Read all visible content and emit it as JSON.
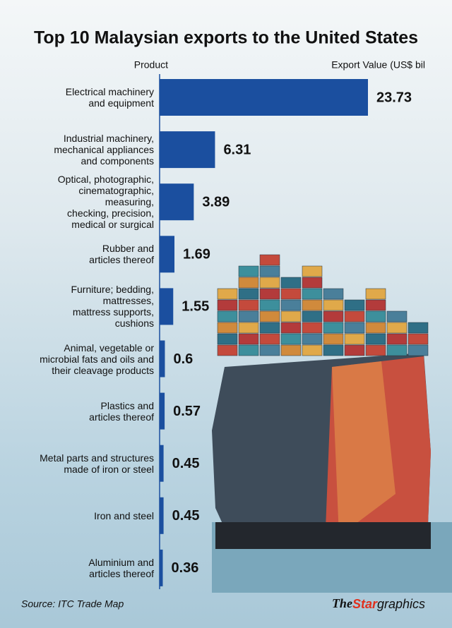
{
  "chart_data": {
    "type": "bar",
    "orientation": "horizontal",
    "title": "Top 10 Malaysian exports to the United States",
    "category_header": "Product",
    "value_header": "Export Value (US$ bil",
    "categories": [
      "Electrical machinery\nand equipment",
      "Industrial machinery,\nmechanical appliances\nand components",
      "Optical, photographic,\ncinematographic,\nmeasuring,\nchecking, precision,\nmedical or surgical",
      "Rubber and\narticles thereof",
      "Furniture; bedding,\nmattresses,\nmattress supports,\ncushions",
      "Animal, vegetable or\nmicrobial fats and oils and\ntheir cleavage products",
      "Plastics and\narticles thereof",
      "Metal parts and structures\nmade of iron or steel",
      "Iron and steel",
      "Aluminium and\narticles thereof"
    ],
    "values": [
      23.73,
      6.31,
      3.89,
      1.69,
      1.55,
      0.6,
      0.57,
      0.45,
      0.45,
      0.36
    ],
    "color": "#1b4f9f",
    "source": "Source: ITC Trade Map",
    "credit": [
      "The",
      "Star",
      "graphics"
    ]
  }
}
